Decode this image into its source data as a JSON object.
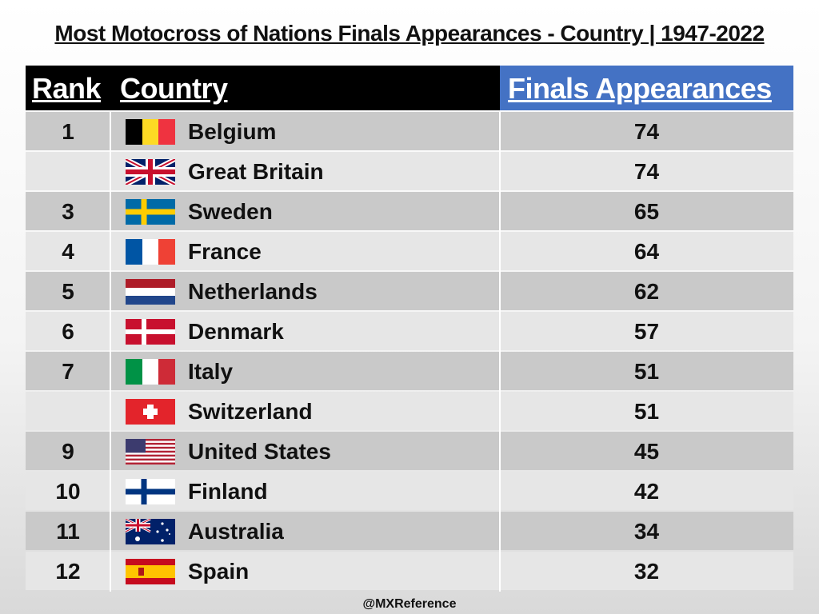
{
  "title": "Most Motocross of Nations Finals Appearances - Country | 1947-2022",
  "table": {
    "columns": [
      "Rank",
      "Country",
      "Finals Appearances"
    ],
    "rows": [
      {
        "rank": 1,
        "country": "Belgium",
        "appearances": 74
      },
      {
        "rank": null,
        "country": "Great Britain",
        "appearances": 74
      },
      {
        "rank": 3,
        "country": "Sweden",
        "appearances": 65
      },
      {
        "rank": 4,
        "country": "France",
        "appearances": 64
      },
      {
        "rank": 5,
        "country": "Netherlands",
        "appearances": 62
      },
      {
        "rank": 6,
        "country": "Denmark",
        "appearances": 57
      },
      {
        "rank": 7,
        "country": "Italy",
        "appearances": 51
      },
      {
        "rank": null,
        "country": "Switzerland",
        "appearances": 51
      },
      {
        "rank": 9,
        "country": "United States",
        "appearances": 45
      },
      {
        "rank": 10,
        "country": "Finland",
        "appearances": 42
      },
      {
        "rank": 11,
        "country": "Australia",
        "appearances": 34
      },
      {
        "rank": 12,
        "country": "Spain",
        "appearances": 32
      }
    ]
  },
  "footer": "@MXReference"
}
